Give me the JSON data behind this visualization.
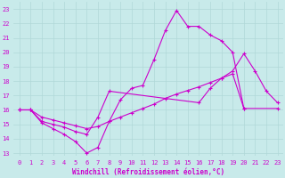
{
  "background_color": "#c8eaea",
  "grid_color": "#b0d8d8",
  "line_color": "#cc00cc",
  "xlabel": "Windchill (Refroidissement éolien,°C)",
  "xlabel_fontsize": 5.5,
  "tick_fontsize": 5.0,
  "xlim": [
    -0.5,
    23.5
  ],
  "ylim": [
    12.8,
    23.5
  ],
  "yticks": [
    13,
    14,
    15,
    16,
    17,
    18,
    19,
    20,
    21,
    22,
    23
  ],
  "xticks": [
    0,
    1,
    2,
    3,
    4,
    5,
    6,
    7,
    8,
    9,
    10,
    11,
    12,
    13,
    14,
    15,
    16,
    17,
    18,
    19,
    20,
    21,
    22,
    23
  ],
  "series": [
    {
      "x": [
        0,
        1,
        2,
        3,
        4,
        5,
        6,
        7,
        8,
        9,
        10,
        11,
        12,
        13,
        14,
        15,
        16,
        17,
        18,
        19,
        20
      ],
      "y": [
        16,
        16,
        15.1,
        14.7,
        14.3,
        13.8,
        13.0,
        13.4,
        15.2,
        16.7,
        17.5,
        17.7,
        19.5,
        21.5,
        22.9,
        21.8,
        21.8,
        21.2,
        20.8,
        20.0,
        16.1
      ]
    },
    {
      "x": [
        0,
        1,
        2,
        3,
        4,
        5,
        6,
        7,
        8,
        16,
        17,
        18,
        19,
        20,
        21,
        22,
        23
      ],
      "y": [
        16,
        16,
        15.2,
        15.0,
        14.8,
        14.5,
        14.3,
        15.5,
        17.3,
        16.5,
        17.5,
        18.2,
        18.7,
        19.9,
        18.7,
        17.3,
        16.5
      ]
    },
    {
      "x": [
        0,
        1,
        2,
        3,
        4,
        5,
        6,
        7,
        8,
        9,
        10,
        11,
        12,
        13,
        14,
        15,
        16,
        17,
        18,
        19,
        20,
        23
      ],
      "y": [
        16,
        16,
        15.5,
        15.3,
        15.1,
        14.9,
        14.7,
        14.85,
        15.2,
        15.5,
        15.8,
        16.1,
        16.4,
        16.8,
        17.1,
        17.35,
        17.6,
        17.9,
        18.2,
        18.5,
        16.1,
        16.1
      ]
    }
  ]
}
